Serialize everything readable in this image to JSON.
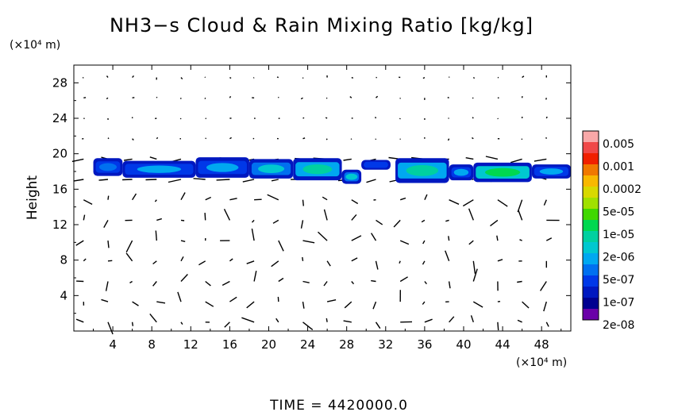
{
  "chart_data": {
    "type": "heatmap",
    "title": "NH3−s Cloud & Rain Mixing Ratio [kg/kg]",
    "ylabel": "Height",
    "xlabel": "",
    "x_unit_label": "(×10⁴ m)",
    "y_unit_label": "(×10⁴ m)",
    "xlim": [
      0,
      51
    ],
    "ylim": [
      0,
      30
    ],
    "x_ticks": [
      4,
      8,
      12,
      16,
      20,
      24,
      28,
      32,
      36,
      40,
      44,
      48
    ],
    "y_ticks": [
      4,
      8,
      12,
      16,
      20,
      24,
      28
    ],
    "time_label": "TIME",
    "time_value": "4420000.0",
    "colorbar": {
      "labels": [
        "0.005",
        "0.001",
        "0.0002",
        "5e-05",
        "1e-05",
        "2e-06",
        "5e-07",
        "1e-07",
        "2e-08"
      ],
      "colors": [
        "#f8a8a8",
        "#f04848",
        "#f02000",
        "#f07800",
        "#f8b800",
        "#d8d800",
        "#a0e000",
        "#40d800",
        "#00d850",
        "#00d0a0",
        "#00c8d0",
        "#00a8f0",
        "#0070f0",
        "#0038e8",
        "#0018c0",
        "#000090",
        "#6a00a8"
      ]
    },
    "cloud_segments": [
      {
        "x0": 2.0,
        "x1": 5.0,
        "ybot": 17.5,
        "ytop": 19.5,
        "level": 4
      },
      {
        "x0": 5.0,
        "x1": 12.5,
        "ybot": 17.3,
        "ytop": 19.2,
        "level": 5
      },
      {
        "x0": 12.5,
        "x1": 18.0,
        "ybot": 17.3,
        "ytop": 19.6,
        "level": 5
      },
      {
        "x0": 18.0,
        "x1": 22.5,
        "ybot": 17.2,
        "ytop": 19.4,
        "level": 6
      },
      {
        "x0": 22.5,
        "x1": 27.5,
        "ybot": 17.0,
        "ytop": 19.5,
        "level": 7
      },
      {
        "x0": 27.5,
        "x1": 29.5,
        "ybot": 16.6,
        "ytop": 18.2,
        "level": 6
      },
      {
        "x0": 29.5,
        "x1": 32.5,
        "ybot": 18.2,
        "ytop": 19.3,
        "level": 3
      },
      {
        "x0": 33.0,
        "x1": 38.5,
        "ybot": 16.7,
        "ytop": 19.5,
        "level": 7
      },
      {
        "x0": 38.5,
        "x1": 41.0,
        "ybot": 17.0,
        "ytop": 18.8,
        "level": 5
      },
      {
        "x0": 41.0,
        "x1": 47.0,
        "ybot": 16.8,
        "ytop": 19.0,
        "level": 8
      },
      {
        "x0": 47.0,
        "x1": 51.0,
        "ybot": 17.2,
        "ytop": 18.8,
        "level": 5
      }
    ]
  }
}
